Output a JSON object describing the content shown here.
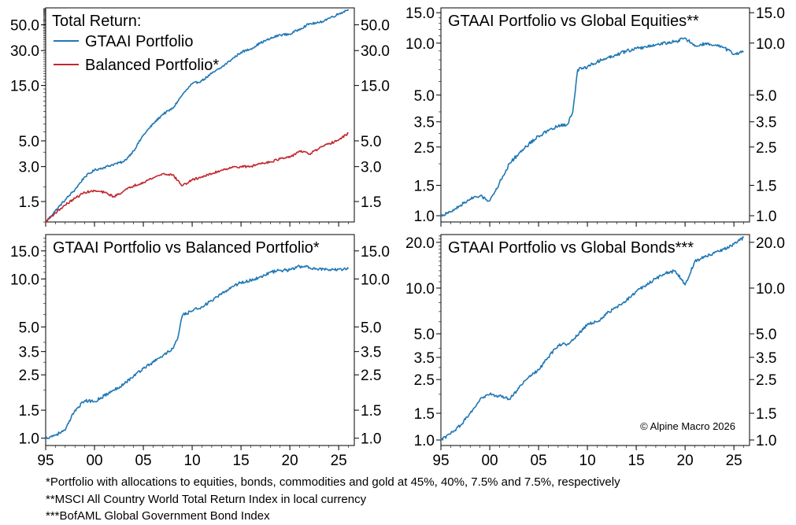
{
  "chart_data": [
    {
      "type": "line",
      "title": "",
      "legend_title": "Total Return:",
      "legend_position": "top-left",
      "y_scale": "log",
      "ylim": [
        1.0,
        70.0
      ],
      "xlim": [
        1995,
        2026.6
      ],
      "x_ticks": [
        1995,
        2000,
        2005,
        2010,
        2015,
        2020,
        2025
      ],
      "x_tick_labels": [
        "95",
        "00",
        "05",
        "10",
        "15",
        "20",
        "25"
      ],
      "y_ticks": [
        1.5,
        3.0,
        5.0,
        15.0,
        30.0,
        50.0
      ],
      "y_tick_labels": [
        "1.5",
        "3.0",
        "5.0",
        "15.0",
        "30.0",
        "50.0"
      ],
      "grid": false,
      "series": [
        {
          "name": "GTAAI Portfolio",
          "color": "#1f77b4",
          "x": [
            1995.0,
            1996.0,
            1997.0,
            1998.0,
            1999.0,
            2000.0,
            2001.0,
            2002.0,
            2003.0,
            2004.0,
            2005.0,
            2006.0,
            2007.0,
            2008.0,
            2009.0,
            2010.0,
            2011.0,
            2012.0,
            2013.0,
            2014.0,
            2015.0,
            2016.0,
            2017.0,
            2018.0,
            2019.0,
            2020.0,
            2021.0,
            2022.0,
            2023.0,
            2024.0,
            2025.0,
            2026.0
          ],
          "y": [
            1.0,
            1.25,
            1.55,
            1.9,
            2.45,
            2.8,
            2.95,
            3.15,
            3.3,
            4.1,
            5.6,
            7.0,
            8.5,
            9.5,
            12.5,
            15.5,
            16.5,
            19.0,
            21.5,
            25.0,
            29.0,
            31.0,
            35.0,
            38.0,
            41.0,
            41.5,
            46.0,
            51.0,
            52.0,
            57.0,
            62.0,
            68.0
          ]
        },
        {
          "name": "Balanced Portfolio*",
          "color": "#c1272d",
          "x": [
            1995.0,
            1996.0,
            1997.0,
            1998.0,
            1999.0,
            2000.0,
            2001.0,
            2002.0,
            2003.0,
            2004.0,
            2005.0,
            2006.0,
            2007.0,
            2008.0,
            2009.0,
            2010.0,
            2011.0,
            2012.0,
            2013.0,
            2014.0,
            2015.0,
            2016.0,
            2017.0,
            2018.0,
            2019.0,
            2020.0,
            2021.0,
            2022.0,
            2023.0,
            2024.0,
            2025.0,
            2026.0
          ],
          "y": [
            1.0,
            1.2,
            1.4,
            1.6,
            1.8,
            1.85,
            1.8,
            1.65,
            1.85,
            2.05,
            2.2,
            2.4,
            2.6,
            2.55,
            2.05,
            2.3,
            2.45,
            2.6,
            2.8,
            2.95,
            3.0,
            3.0,
            3.2,
            3.3,
            3.5,
            3.6,
            4.1,
            3.85,
            4.3,
            4.7,
            5.1,
            5.8
          ]
        }
      ]
    },
    {
      "type": "line",
      "title": "GTAAI Portfolio vs Global Equities**",
      "y_scale": "log",
      "ylim": [
        0.92,
        16.0
      ],
      "xlim": [
        1995,
        2026.6
      ],
      "x_ticks": [
        1995,
        2000,
        2005,
        2010,
        2015,
        2020,
        2025
      ],
      "x_tick_labels": [
        "95",
        "00",
        "05",
        "10",
        "15",
        "20",
        "25"
      ],
      "y_ticks": [
        1.0,
        1.5,
        2.5,
        3.5,
        5.0,
        10.0,
        15.0
      ],
      "y_tick_labels": [
        "1.0",
        "1.5",
        "2.5",
        "3.5",
        "5.0",
        "10.0",
        "15.0"
      ],
      "grid": false,
      "series": [
        {
          "name": "",
          "color": "#1f77b4",
          "x": [
            1995.0,
            1996.0,
            1997.0,
            1998.0,
            1999.0,
            2000.0,
            2001.0,
            2002.0,
            2003.0,
            2004.0,
            2005.0,
            2006.0,
            2007.0,
            2008.0,
            2008.5,
            2009.0,
            2010.0,
            2011.0,
            2012.0,
            2013.0,
            2014.0,
            2015.0,
            2016.0,
            2017.0,
            2018.0,
            2019.0,
            2020.0,
            2021.0,
            2022.0,
            2023.0,
            2024.0,
            2025.0,
            2026.0
          ],
          "y": [
            1.0,
            1.05,
            1.15,
            1.25,
            1.3,
            1.22,
            1.55,
            2.0,
            2.3,
            2.6,
            2.9,
            3.1,
            3.3,
            3.4,
            4.0,
            7.0,
            7.3,
            7.8,
            8.2,
            8.6,
            9.0,
            9.3,
            9.5,
            9.8,
            10.0,
            10.2,
            10.7,
            9.6,
            9.9,
            9.7,
            9.4,
            8.6,
            8.9
          ]
        }
      ]
    },
    {
      "type": "line",
      "title": "GTAAI Portfolio vs Balanced Portfolio*",
      "y_scale": "log",
      "ylim": [
        0.9,
        19.0
      ],
      "xlim": [
        1995,
        2026.6
      ],
      "x_ticks": [
        1995,
        2000,
        2005,
        2010,
        2015,
        2020,
        2025
      ],
      "x_tick_labels": [
        "95",
        "00",
        "05",
        "10",
        "15",
        "20",
        "25"
      ],
      "y_ticks": [
        1.0,
        1.5,
        2.5,
        3.5,
        5.0,
        10.0,
        15.0
      ],
      "y_tick_labels": [
        "1.0",
        "1.5",
        "2.5",
        "3.5",
        "5.0",
        "10.0",
        "15.0"
      ],
      "grid": false,
      "series": [
        {
          "name": "",
          "color": "#1f77b4",
          "x": [
            1995.0,
            1996.0,
            1997.0,
            1998.0,
            1999.0,
            2000.0,
            2001.0,
            2002.0,
            2003.0,
            2004.0,
            2005.0,
            2006.0,
            2007.0,
            2008.0,
            2008.5,
            2009.0,
            2010.0,
            2011.0,
            2012.0,
            2013.0,
            2014.0,
            2015.0,
            2016.0,
            2017.0,
            2018.0,
            2019.0,
            2020.0,
            2021.0,
            2022.0,
            2023.0,
            2024.0,
            2025.0,
            2026.0
          ],
          "y": [
            1.0,
            1.05,
            1.12,
            1.5,
            1.72,
            1.7,
            1.85,
            2.0,
            2.2,
            2.45,
            2.75,
            3.0,
            3.3,
            3.65,
            4.2,
            5.9,
            6.3,
            6.7,
            7.3,
            8.0,
            8.9,
            9.5,
            9.8,
            10.3,
            11.0,
            11.3,
            11.4,
            12.0,
            11.8,
            11.6,
            11.3,
            11.5,
            11.6
          ]
        }
      ]
    },
    {
      "type": "line",
      "title": "GTAAI Portfolio vs Global Bonds***",
      "annotation": "© Alpine Macro 2026",
      "y_scale": "log",
      "ylim": [
        0.92,
        22.5
      ],
      "xlim": [
        1995,
        2026.6
      ],
      "x_ticks": [
        1995,
        2000,
        2005,
        2010,
        2015,
        2020,
        2025
      ],
      "x_tick_labels": [
        "95",
        "00",
        "05",
        "10",
        "15",
        "20",
        "25"
      ],
      "y_ticks": [
        1.0,
        1.5,
        2.5,
        3.5,
        5.0,
        10.0,
        20.0
      ],
      "y_tick_labels": [
        "1.0",
        "1.5",
        "2.5",
        "3.5",
        "5.0",
        "10.0",
        "20.0"
      ],
      "grid": false,
      "series": [
        {
          "name": "",
          "color": "#1f77b4",
          "x": [
            1995.0,
            1996.0,
            1997.0,
            1998.0,
            1999.0,
            2000.0,
            2001.0,
            2002.0,
            2003.0,
            2004.0,
            2005.0,
            2006.0,
            2007.0,
            2008.0,
            2009.0,
            2010.0,
            2011.0,
            2012.0,
            2013.0,
            2014.0,
            2015.0,
            2016.0,
            2017.0,
            2018.0,
            2019.0,
            2020.0,
            2021.0,
            2022.0,
            2023.0,
            2024.0,
            2025.0,
            2026.0
          ],
          "y": [
            1.0,
            1.1,
            1.25,
            1.5,
            1.85,
            2.0,
            1.95,
            1.85,
            2.2,
            2.6,
            2.9,
            3.5,
            4.2,
            4.3,
            4.9,
            5.8,
            6.0,
            6.8,
            7.5,
            8.3,
            9.5,
            10.5,
            11.5,
            12.5,
            13.0,
            10.5,
            15.0,
            16.0,
            17.0,
            18.0,
            19.5,
            21.5
          ]
        }
      ]
    }
  ],
  "footnotes": [
    "*Portfolio with allocations to equities, bonds, commodities and gold at 45%, 40%, 7.5% and 7.5%, respectively",
    "**MSCI All Country World Total Return Index in local currency",
    "***BofAML Global Government Bond Index"
  ]
}
